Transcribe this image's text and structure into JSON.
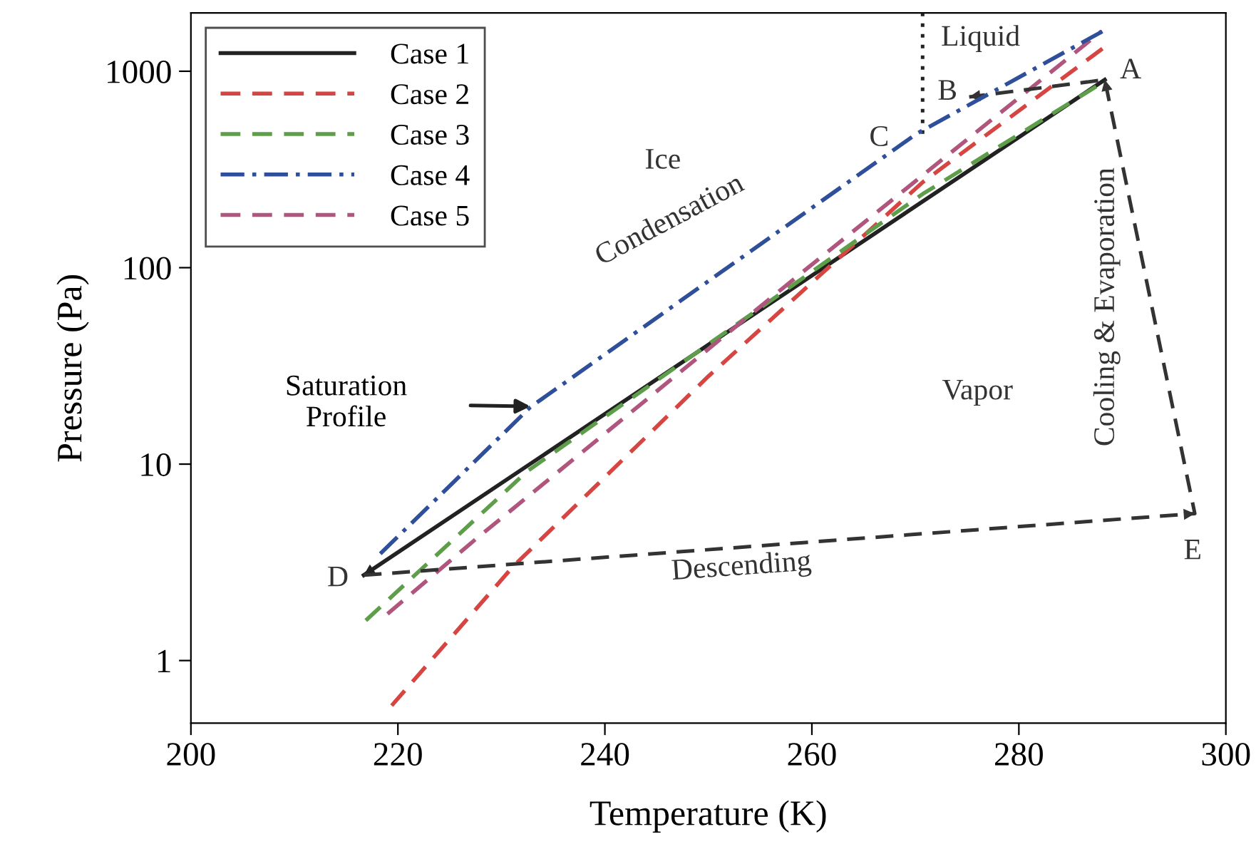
{
  "chart_data": {
    "type": "line",
    "xlabel": "Temperature (K)",
    "ylabel": "Pressure (Pa)",
    "xlim": [
      200,
      300
    ],
    "xticks": [
      200,
      220,
      240,
      260,
      280,
      300
    ],
    "ylim": [
      0.48,
      1980
    ],
    "yticks": [
      1,
      10,
      100,
      1000
    ],
    "log": "y",
    "grid": false,
    "legend": "top left",
    "series": [
      {
        "name": "Case 1",
        "color": "#222222",
        "line_style": "solid",
        "x": [
          216.7,
          288.3
        ],
        "values": [
          2.72,
          905
        ]
      },
      {
        "name": "Case 2",
        "color": "#d64541",
        "line_style": "dashed",
        "x": [
          219.4,
          231.1,
          250,
          270.7,
          288.3
        ],
        "values": [
          0.59,
          3.0,
          28,
          272,
          1330
        ]
      },
      {
        "name": "Case 3",
        "color": "#5e9e4a",
        "line_style": "dashed",
        "x": [
          216.9,
          232.5,
          270.7,
          288
        ],
        "values": [
          1.6,
          9.2,
          237,
          870
        ]
      },
      {
        "name": "Case 4",
        "color": "#2f4f9a",
        "line_style": "dashdot",
        "x": [
          218.3,
          232.8,
          270.1,
          288.3
        ],
        "values": [
          3.5,
          19.5,
          480,
          1620
        ]
      },
      {
        "name": "Case 5",
        "color": "#b0557d",
        "line_style": "dashed",
        "x": [
          219.0,
          227.4,
          259.1,
          288
        ],
        "values": [
          1.73,
          4.1,
          95,
          1600
        ]
      },
      {
        "color": "#333333",
        "line_style": "dashed",
        "x": [
          216.7,
          297.0,
          288.3,
          275.2
        ],
        "values": [
          2.72,
          5.6,
          905,
          740
        ]
      },
      {
        "color": "#222222",
        "line_style": "dotted",
        "x": [
          270.7,
          270.7
        ],
        "values": [
          480,
          1980
        ]
      }
    ],
    "annotations": [
      "A",
      "B",
      "C",
      "D",
      "E",
      "Liquid",
      "Ice",
      "Vapor",
      "Condensation",
      "Cooling & Evaporation",
      "Descending",
      "Saturation\nProfile"
    ]
  }
}
